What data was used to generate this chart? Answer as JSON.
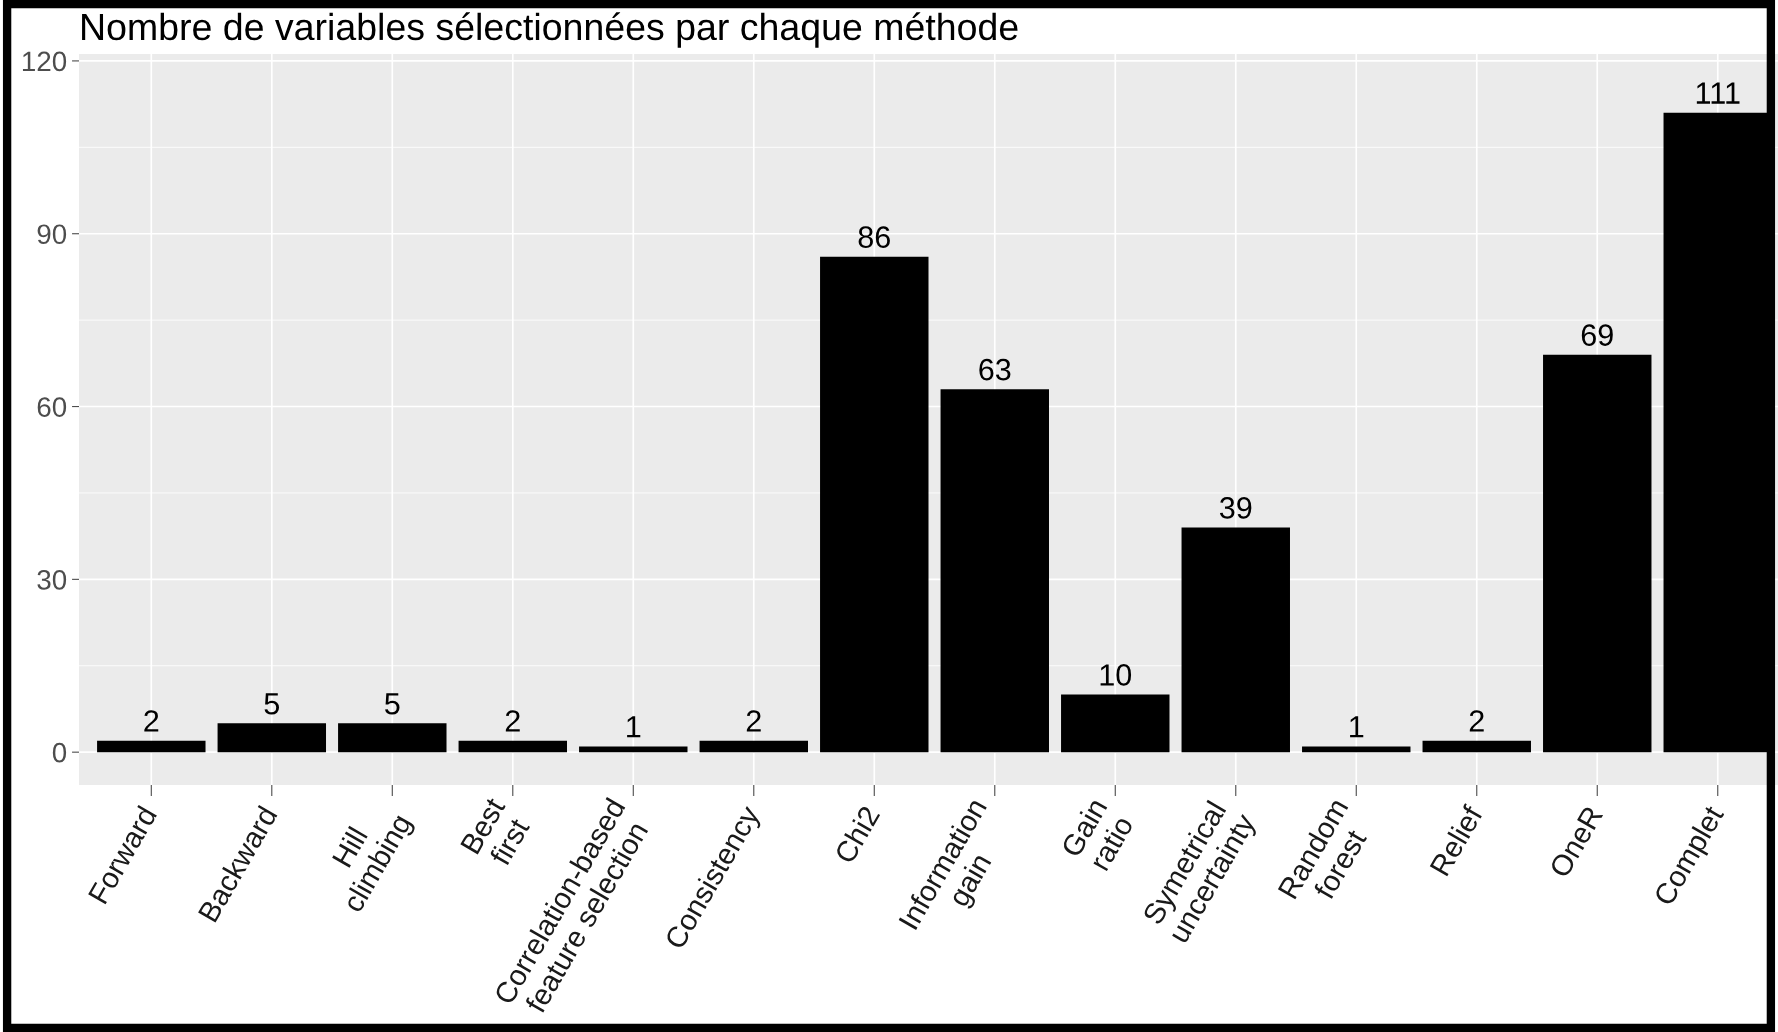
{
  "chart_data": {
    "type": "bar",
    "title": "Nombre de variables sélectionnées par chaque méthode",
    "categories": [
      "Forward",
      "Backward",
      "Hill\nclimbing",
      "Best\nfirst",
      "Correlation-based\nfeature selection",
      "Consistency",
      "Chi2",
      "Information\ngain",
      "Gain\nratio",
      "Symetrical\nuncertainty",
      "Random\nforest",
      "Relief",
      "OneR",
      "Complet"
    ],
    "values": [
      2,
      5,
      5,
      2,
      1,
      2,
      86,
      63,
      10,
      39,
      1,
      2,
      69,
      111
    ],
    "color": "#000000",
    "ylim": [
      -5.7,
      121.2
    ],
    "yticks": [
      0,
      30,
      60,
      90,
      120
    ],
    "grid": true,
    "data_labels": true
  }
}
